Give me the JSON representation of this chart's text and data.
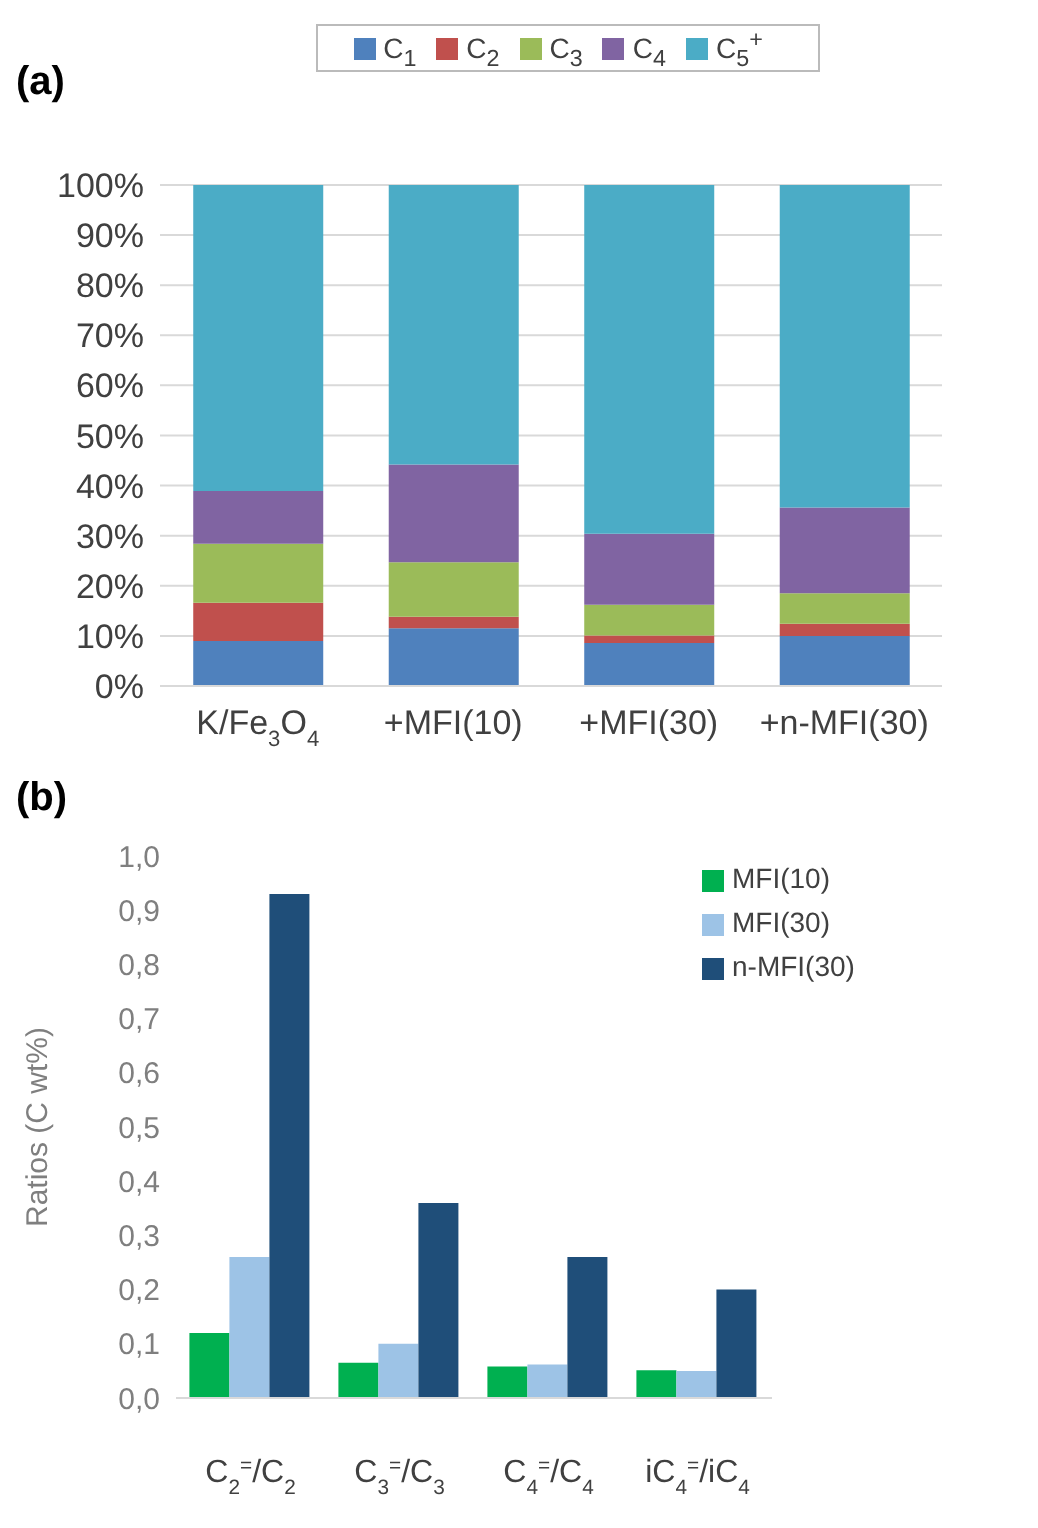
{
  "chart_data": [
    {
      "type": "bar",
      "title": "(a)",
      "stacked": true,
      "categories": [
        "K/Fe$_{3}$O$_{4}$",
        "+MFI(10)",
        "+MFI(30)",
        "+n-MFI(30)"
      ],
      "series": [
        {
          "name": "C$_{1}$",
          "color": "#4f81bd",
          "values": [
            9.0,
            11.5,
            8.6,
            10.0
          ]
        },
        {
          "name": "C$_{2}$",
          "color": "#c0504d",
          "values": [
            7.6,
            2.3,
            1.5,
            2.4
          ]
        },
        {
          "name": "C$_{3}$",
          "color": "#9bbb59",
          "values": [
            11.8,
            10.9,
            6.1,
            6.1
          ]
        },
        {
          "name": "C$_{4}$",
          "color": "#8064a2",
          "values": [
            10.5,
            19.5,
            14.2,
            17.1
          ]
        },
        {
          "name": "C$_{5}$$^{+}$",
          "color": "#4bacc6",
          "values": [
            61.1,
            55.8,
            69.6,
            64.4
          ]
        }
      ],
      "ylim": [
        0,
        100
      ],
      "yticks": [
        {
          "value": 0,
          "label": "0%"
        },
        {
          "value": 10,
          "label": "10%"
        },
        {
          "value": 20,
          "label": "20%"
        },
        {
          "value": 30,
          "label": "30%"
        },
        {
          "value": 40,
          "label": "40%"
        },
        {
          "value": 50,
          "label": "50%"
        },
        {
          "value": 60,
          "label": "60%"
        },
        {
          "value": 70,
          "label": "70%"
        },
        {
          "value": 80,
          "label": "80%"
        },
        {
          "value": 90,
          "label": "90%"
        },
        {
          "value": 100,
          "label": "100%"
        }
      ],
      "grid": "y",
      "legend": "top"
    },
    {
      "type": "bar",
      "title": "(b)",
      "ylabel": "Ratios (C wt%)",
      "categories": [
        "C$_{2}$$^{=}$/C$_{2}$",
        "C$_{3}$$^{=}$/C$_{3}$",
        "C$_{4}$$^{=}$/C$_{4}$",
        "iC$_{4}$$^{=}$/iC$_{4}$"
      ],
      "series": [
        {
          "name": "MFI(10)",
          "color": "#00b050",
          "values": [
            0.12,
            0.065,
            0.058,
            0.051
          ]
        },
        {
          "name": "MFI(30)",
          "color": "#9dc3e6",
          "values": [
            0.26,
            0.1,
            0.062,
            0.05
          ]
        },
        {
          "name": "n-MFI(30)",
          "color": "#1f4e79",
          "values": [
            0.93,
            0.36,
            0.26,
            0.2
          ]
        }
      ],
      "ylim": [
        0,
        1
      ],
      "yticks": [
        {
          "value": 0,
          "label": "0,0"
        },
        {
          "value": 0.1,
          "label": "0,1"
        },
        {
          "value": 0.2,
          "label": "0,2"
        },
        {
          "value": 0.3,
          "label": "0,3"
        },
        {
          "value": 0.4,
          "label": "0,4"
        },
        {
          "value": 0.5,
          "label": "0,5"
        },
        {
          "value": 0.6,
          "label": "0,6"
        },
        {
          "value": 0.7,
          "label": "0,7"
        },
        {
          "value": 0.8,
          "label": "0,8"
        },
        {
          "value": 0.9,
          "label": "0,9"
        },
        {
          "value": 1,
          "label": "1,0"
        }
      ],
      "legend": "top right"
    }
  ]
}
